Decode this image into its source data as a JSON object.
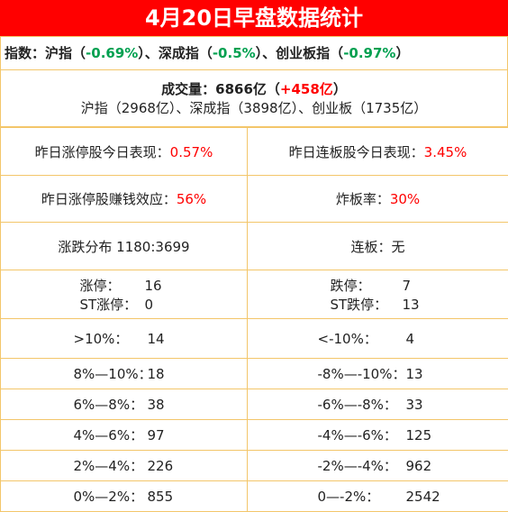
{
  "title": "4月20日早盘数据统计",
  "indices": {
    "prefix": "指数：",
    "sh_label": "沪指（",
    "sh_value": "-0.69%",
    "sh_close": "）、",
    "sz_label": "深成指（",
    "sz_value": "-0.5%",
    "sz_close": "）、",
    "cy_label": "创业板指（",
    "cy_value": "-0.97%",
    "cy_close": "）"
  },
  "volume": {
    "label": "成交量：6866亿（",
    "change": "+458亿",
    "close": "）",
    "breakdown": "沪指（2968亿）、深成指（3898亿）、创业板（1735亿）"
  },
  "stats": {
    "limit_up_perf_label": "昨日涨停股今日表现：",
    "limit_up_perf_value": "0.57%",
    "consec_perf_label": "昨日连板股今日表现：",
    "consec_perf_value": "3.45%",
    "money_effect_label": "昨日涨停股赚钱效应：",
    "money_effect_value": "56%",
    "broken_rate_label": "炸板率：",
    "broken_rate_value": "30%",
    "distribution": "涨跌分布 1180:3699",
    "consecutive": "连板：无"
  },
  "limits": {
    "up_label": "涨停：",
    "up_value": "16",
    "st_up_label": "ST涨停：",
    "st_up_value": "0",
    "down_label": "跌停：",
    "down_value": "7",
    "st_down_label": "ST跌停：",
    "st_down_value": "13"
  },
  "ranges": [
    {
      "up_label": ">10%：",
      "up_value": "14",
      "down_label": "<-10%：",
      "down_value": "4"
    },
    {
      "up_label": "8%—10%：",
      "up_value": "18",
      "down_label": "-8%—-10%：",
      "down_value": "13"
    },
    {
      "up_label": "6%—8%：",
      "up_value": "38",
      "down_label": "-6%—-8%：",
      "down_value": "33"
    },
    {
      "up_label": "4%—6%：",
      "up_value": "97",
      "down_label": "-4%—-6%：",
      "down_value": "125"
    },
    {
      "up_label": "2%—4%：",
      "up_value": "226",
      "down_label": "-2%—-4%：",
      "down_value": "962"
    },
    {
      "up_label": "0%—2%：",
      "up_value": "855",
      "down_label": "0—-2%：",
      "down_value": "2542"
    }
  ],
  "colors": {
    "banner": "#ff0000",
    "up": "#ff0000",
    "down": "#00a050",
    "border": "#f3c66a"
  }
}
